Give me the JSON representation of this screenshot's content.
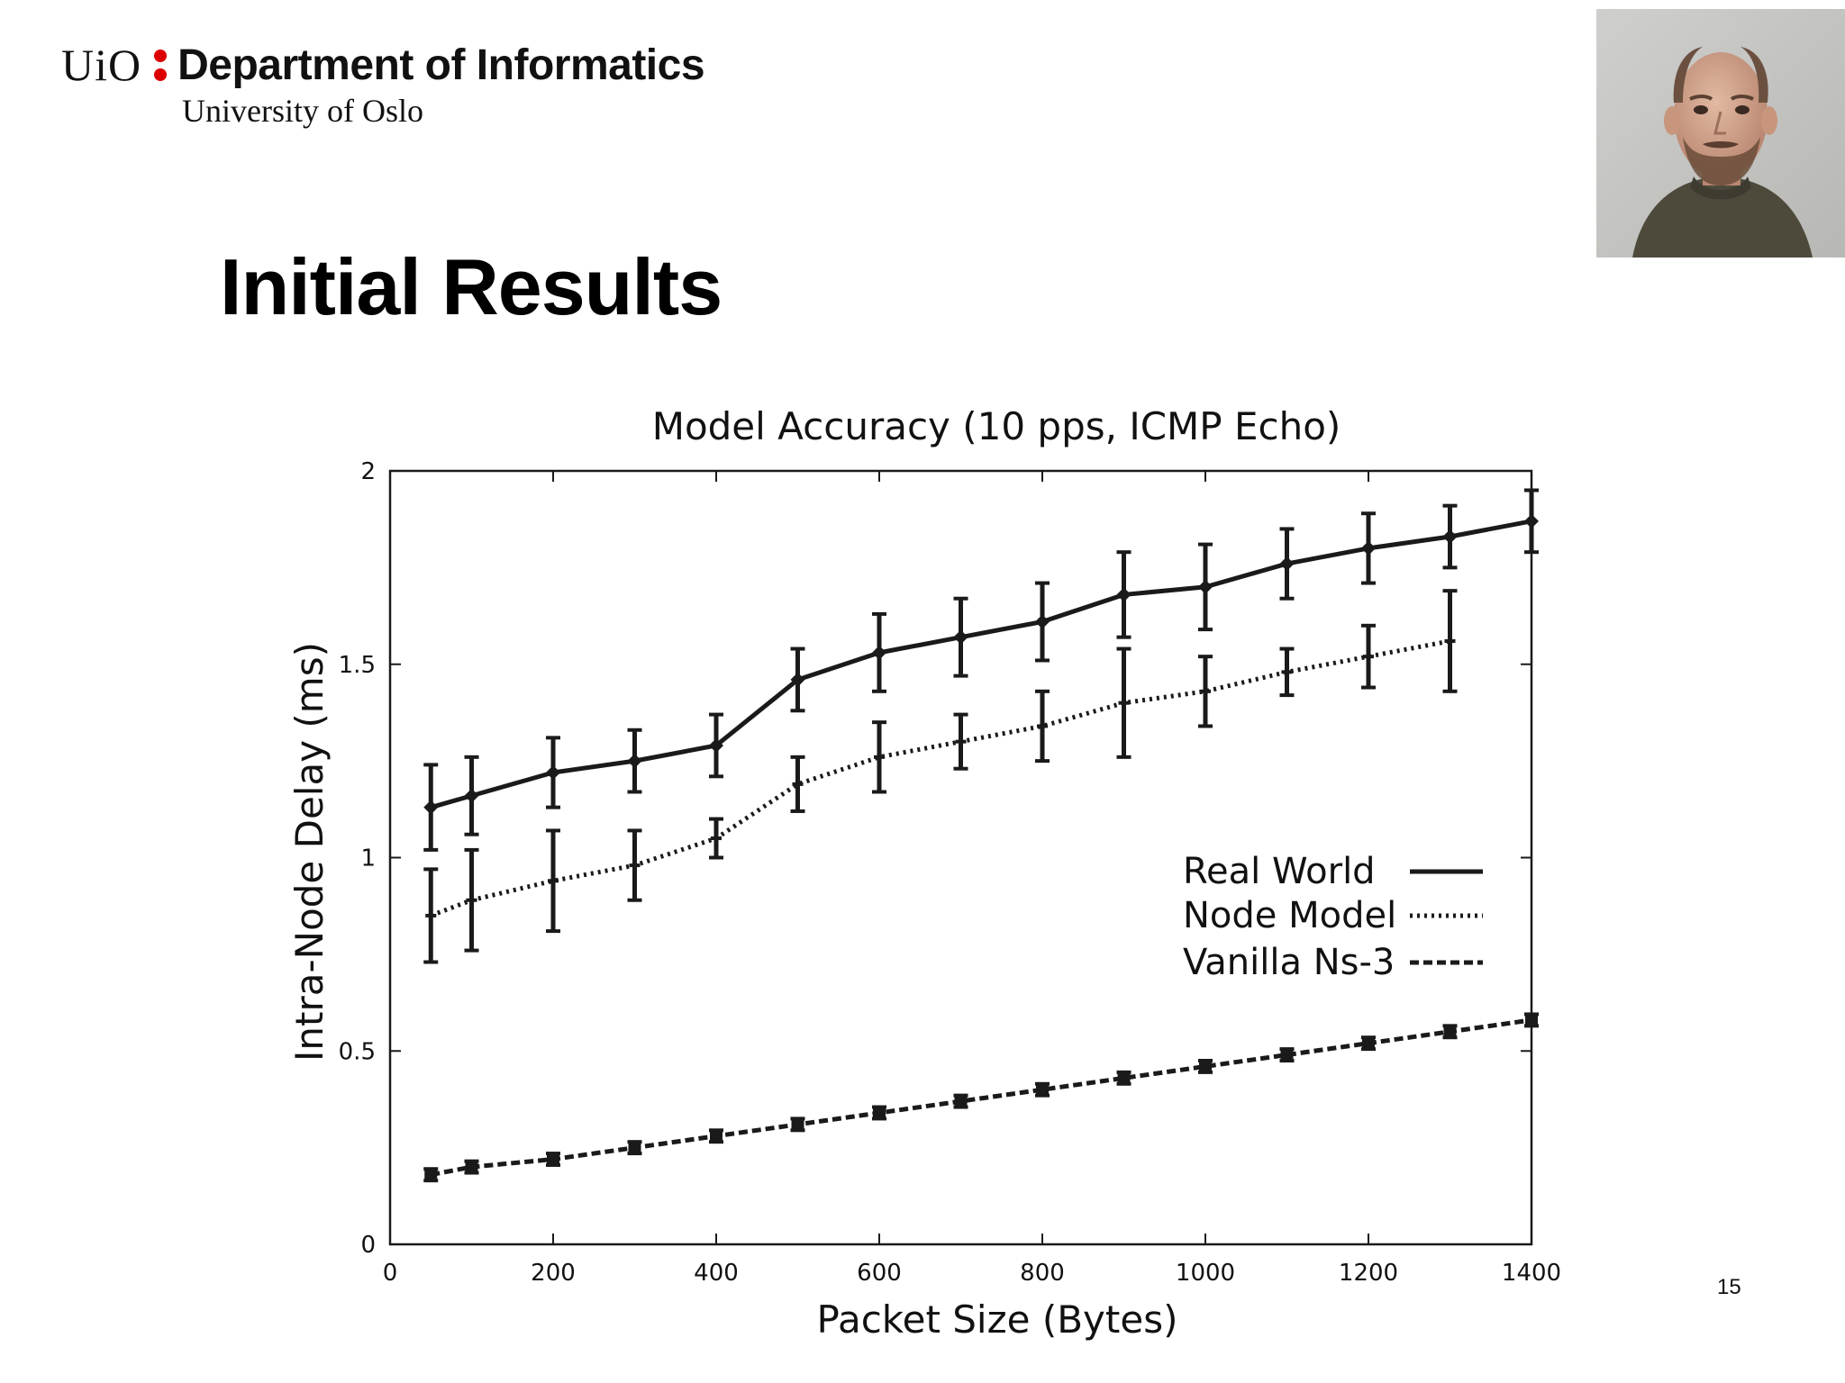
{
  "header": {
    "logo_text": "UiO",
    "department": "Department of Informatics",
    "university": "University of Oslo"
  },
  "slide": {
    "title": "Initial Results",
    "page_number": "15"
  },
  "colors": {
    "logo_dots": "#dd0000",
    "series": "#1a1a1a"
  },
  "chart_data": {
    "type": "line",
    "title": "Model Accuracy (10 pps, ICMP Echo)",
    "xlabel": "Packet Size (Bytes)",
    "ylabel": "Intra-Node Delay (ms)",
    "xlim": [
      0,
      1400
    ],
    "ylim": [
      0,
      2
    ],
    "xticks": [
      0,
      200,
      400,
      600,
      800,
      1000,
      1200,
      1400
    ],
    "yticks": [
      0,
      0.5,
      1,
      1.5,
      2
    ],
    "ytick_labels": [
      "0",
      "0.5",
      "1",
      "1.5",
      "2"
    ],
    "legend_position": "middle-right",
    "grid": false,
    "series": [
      {
        "name": "Real World",
        "line_style": "solid",
        "x": [
          50,
          100,
          200,
          300,
          400,
          500,
          600,
          700,
          800,
          900,
          1000,
          1100,
          1200,
          1300,
          1400
        ],
        "y": [
          1.13,
          1.16,
          1.22,
          1.25,
          1.29,
          1.46,
          1.53,
          1.57,
          1.61,
          1.68,
          1.7,
          1.76,
          1.8,
          1.83,
          1.87
        ],
        "err": [
          0.11,
          0.1,
          0.09,
          0.08,
          0.08,
          0.08,
          0.1,
          0.1,
          0.1,
          0.11,
          0.11,
          0.09,
          0.09,
          0.08,
          0.08
        ]
      },
      {
        "name": "Node Model",
        "line_style": "dotted",
        "x": [
          50,
          100,
          200,
          300,
          400,
          500,
          600,
          700,
          800,
          900,
          1000,
          1100,
          1200,
          1300
        ],
        "y": [
          0.85,
          0.89,
          0.94,
          0.98,
          1.05,
          1.19,
          1.26,
          1.3,
          1.34,
          1.4,
          1.43,
          1.48,
          1.52,
          1.56
        ],
        "err": [
          0.12,
          0.13,
          0.13,
          0.09,
          0.05,
          0.07,
          0.09,
          0.07,
          0.09,
          0.14,
          0.09,
          0.06,
          0.08,
          0.13
        ]
      },
      {
        "name": "Vanilla Ns-3",
        "line_style": "dashed",
        "x": [
          50,
          100,
          200,
          300,
          400,
          500,
          600,
          700,
          800,
          900,
          1000,
          1100,
          1200,
          1300,
          1400
        ],
        "y": [
          0.18,
          0.2,
          0.22,
          0.25,
          0.28,
          0.31,
          0.34,
          0.37,
          0.4,
          0.43,
          0.46,
          0.49,
          0.52,
          0.55,
          0.58
        ],
        "err": [
          0.015,
          0.015,
          0.015,
          0.015,
          0.015,
          0.015,
          0.015,
          0.015,
          0.015,
          0.015,
          0.015,
          0.015,
          0.015,
          0.015,
          0.015
        ]
      }
    ]
  }
}
